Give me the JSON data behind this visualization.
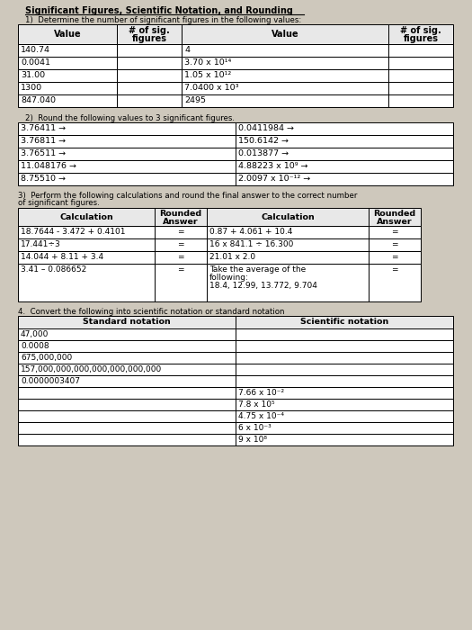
{
  "title": "Significant Figures, Scientific Notation, and Rounding",
  "bg_color": "#cec8bc",
  "section1_instruction": "1)  Determine the number of significant figures in the following values:",
  "section1_headers": [
    "Value",
    "# of sig.\nfigures",
    "Value",
    "# of sig.\nfigures"
  ],
  "section1_left_values": [
    "140.74",
    "0.0041",
    "31.00",
    "1300",
    "847.040"
  ],
  "section1_right_values": [
    "4",
    "3.70 x 10¹⁴",
    "1.05 x 10¹²",
    "7.0400 x 10³",
    "2495"
  ],
  "section2_instruction": "2)  Round the following values to 3 significant figures.",
  "section2_left": [
    "3.76411 →",
    "3.76811 →",
    "3.76511 →",
    "11.048176 →",
    "8.75510 →"
  ],
  "section2_right": [
    "0.0411984 →",
    "150.6142 →",
    "0.013877 →",
    "4.88223 x 10⁹ →",
    "2.0097 x 10⁻¹² →"
  ],
  "section3_instruction": "3)  Perform the following calculations and round the final answer to the correct number\nof significant figures.",
  "section3_headers": [
    "Calculation",
    "Rounded\nAnswer",
    "Calculation",
    "Rounded\nAnswer"
  ],
  "section3_left_calcs": [
    "18.7644 - 3.472 + 0.4101",
    "17.441÷3",
    "14.044 + 8.11 + 3.4",
    "3.41 – 0.086652"
  ],
  "section3_right_calcs": [
    "0.87 + 4.061 + 10.4",
    "16 x 841.1 ÷ 16.300",
    "21.01 x 2.0",
    "Take the average of the\nfollowing:\n18.4, 12.99, 13.772, 9.704"
  ],
  "section4_instruction": "4.  Convert the following into scientific notation or standard notation",
  "section4_headers": [
    "Standard notation",
    "Scientific notation"
  ],
  "section4_standard": [
    "47,000",
    "0.0008",
    "675,000,000",
    "157,000,000,000,000,000,000,000",
    "0.0000003407",
    "",
    "",
    "",
    "",
    ""
  ],
  "section4_scientific": [
    "",
    "",
    "",
    "",
    "",
    "7.66 x 10⁻²",
    "7.8 x 10⁵",
    "4.75 x 10⁻⁴",
    "6 x 10⁻³",
    "9 x 10⁸"
  ]
}
